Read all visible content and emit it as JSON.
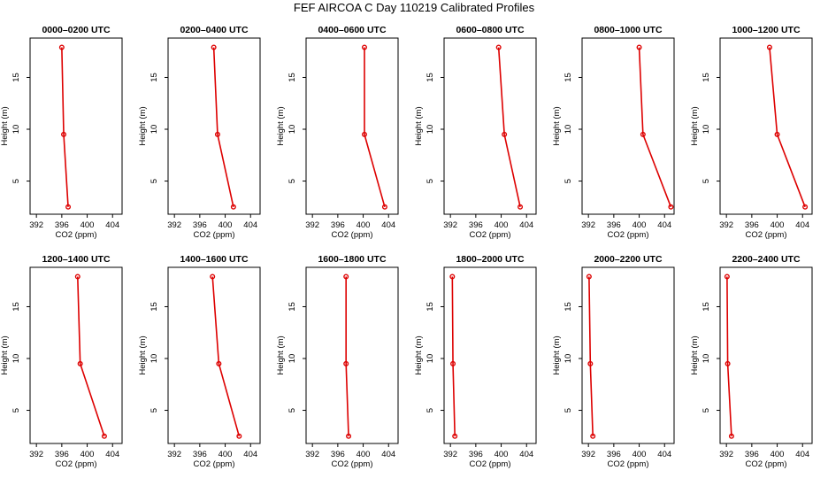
{
  "chart_data": {
    "type": "line",
    "title": "FEF AIRCOA C  Day 110219  Calibrated Profiles",
    "xlabel": "CO2 (ppm)",
    "ylabel": "Height (m)",
    "xlim": [
      391,
      405.5
    ],
    "ylim": [
      1.8,
      18.8
    ],
    "xticks": [
      392,
      396,
      400,
      404
    ],
    "yticks": [
      5,
      10,
      15
    ],
    "series_color": "#dd0000",
    "heights": [
      17.9,
      9.5,
      2.5
    ],
    "panels": [
      {
        "title": "0000–0200 UTC",
        "co2": [
          396.0,
          396.3,
          397.0
        ]
      },
      {
        "title": "0200–0400 UTC",
        "co2": [
          398.2,
          398.8,
          401.3
        ]
      },
      {
        "title": "0400–0600 UTC",
        "co2": [
          400.2,
          400.2,
          403.4
        ]
      },
      {
        "title": "0600–0800 UTC",
        "co2": [
          399.6,
          400.5,
          403.0
        ]
      },
      {
        "title": "0800–1000 UTC",
        "co2": [
          400.0,
          400.6,
          405.0
        ]
      },
      {
        "title": "1000–1200 UTC",
        "co2": [
          398.8,
          400.0,
          404.4
        ]
      },
      {
        "title": "1200–1400 UTC",
        "co2": [
          398.5,
          398.9,
          402.7
        ]
      },
      {
        "title": "1400–1600 UTC",
        "co2": [
          398.0,
          399.0,
          402.2
        ]
      },
      {
        "title": "1600–1800 UTC",
        "co2": [
          397.3,
          397.3,
          397.7
        ]
      },
      {
        "title": "1800–2000 UTC",
        "co2": [
          392.3,
          392.4,
          392.7
        ]
      },
      {
        "title": "2000–2200 UTC",
        "co2": [
          392.1,
          392.3,
          392.7
        ]
      },
      {
        "title": "2200–2400 UTC",
        "co2": [
          392.1,
          392.2,
          392.8
        ]
      }
    ]
  }
}
